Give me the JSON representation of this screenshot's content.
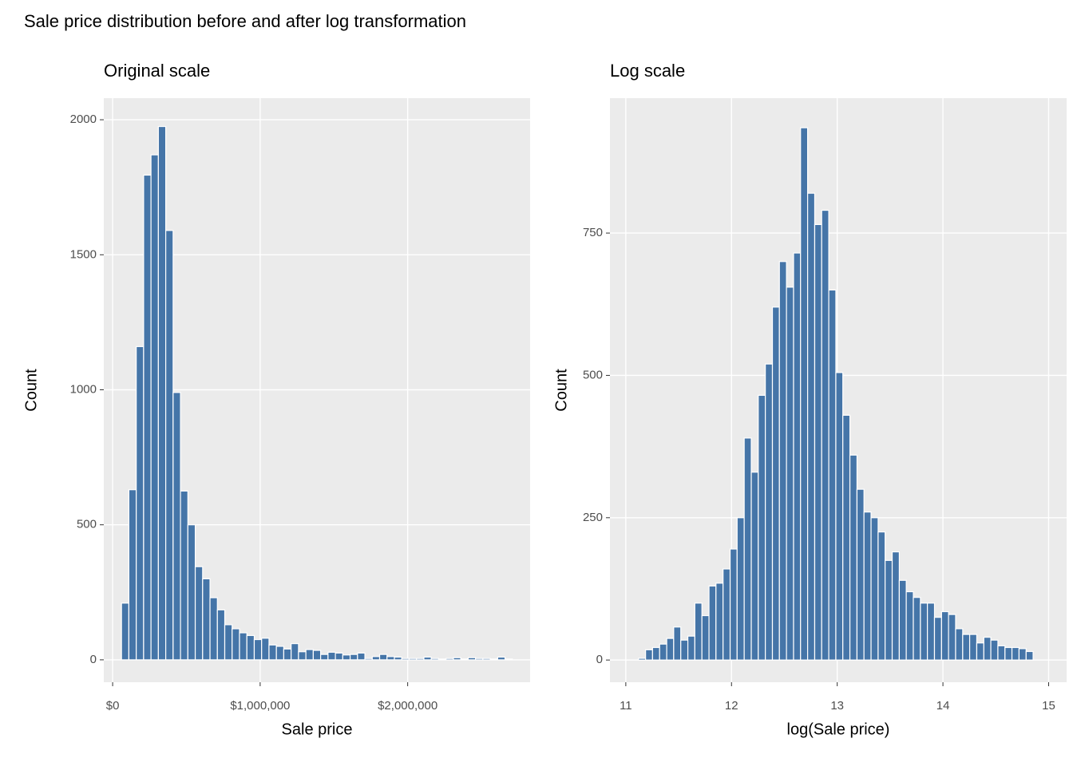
{
  "title": "Sale price distribution before and after log transformation",
  "chart_data": [
    {
      "type": "histogram",
      "title": "Original scale",
      "xlabel": "Sale price",
      "ylabel": "Count",
      "color": "#4575a8",
      "edgecolor": "#ffffff",
      "grid": true,
      "bins": [
        60000,
        110000,
        160000,
        210000,
        260000,
        310000,
        360000,
        410000,
        460000,
        510000,
        560000,
        610000,
        660000,
        710000,
        760000,
        810000,
        860000,
        910000,
        960000,
        1010000,
        1060000,
        1110000,
        1160000,
        1210000,
        1260000,
        1310000,
        1360000,
        1410000,
        1460000,
        1510000,
        1560000,
        1610000,
        1660000,
        1710000,
        1760000,
        1810000,
        1860000,
        1910000,
        1960000,
        2010000,
        2060000,
        2110000,
        2160000,
        2210000,
        2260000,
        2310000,
        2360000,
        2410000,
        2460000,
        2510000,
        2560000,
        2610000,
        2660000,
        2710000
      ],
      "values": [
        210,
        630,
        1160,
        1795,
        1870,
        1975,
        1590,
        990,
        625,
        500,
        345,
        300,
        230,
        185,
        130,
        115,
        100,
        90,
        75,
        80,
        55,
        50,
        40,
        60,
        30,
        38,
        35,
        20,
        28,
        25,
        18,
        20,
        25,
        5,
        12,
        20,
        12,
        10,
        5,
        5,
        5,
        10,
        5,
        3,
        5,
        8,
        3,
        8,
        5,
        5,
        3,
        10,
        3
      ],
      "xlim": [
        -60000,
        2830000
      ],
      "xticks": [
        {
          "value": 0,
          "label": "$0"
        },
        {
          "value": 1000000,
          "label": "$1,000,000"
        },
        {
          "value": 2000000,
          "label": "$2,000,000"
        }
      ],
      "ylim": [
        -83,
        2080
      ],
      "yticks": [
        0,
        500,
        1000,
        1500,
        2000
      ]
    },
    {
      "type": "histogram",
      "title": "Log scale",
      "xlabel": "log(Sale price)",
      "ylabel": "Count",
      "color": "#4575a8",
      "edgecolor": "#ffffff",
      "grid": true,
      "bins": [
        11.12,
        11.187,
        11.253,
        11.32,
        11.387,
        11.453,
        11.52,
        11.587,
        11.653,
        11.72,
        11.787,
        11.853,
        11.92,
        11.987,
        12.053,
        12.12,
        12.187,
        12.253,
        12.32,
        12.387,
        12.453,
        12.52,
        12.587,
        12.653,
        12.72,
        12.787,
        12.853,
        12.92,
        12.987,
        13.053,
        13.12,
        13.187,
        13.253,
        13.32,
        13.387,
        13.453,
        13.52,
        13.587,
        13.653,
        13.72,
        13.787,
        13.853,
        13.92,
        13.987,
        14.053,
        14.12,
        14.187,
        14.253,
        14.32,
        14.387,
        14.453,
        14.52,
        14.587,
        14.653,
        14.72,
        14.787,
        14.853
      ],
      "values": [
        3,
        18,
        22,
        28,
        38,
        58,
        35,
        42,
        100,
        78,
        130,
        135,
        160,
        195,
        250,
        390,
        330,
        465,
        520,
        620,
        700,
        655,
        715,
        935,
        820,
        765,
        790,
        650,
        505,
        430,
        360,
        300,
        260,
        250,
        225,
        175,
        190,
        140,
        120,
        110,
        100,
        100,
        75,
        85,
        80,
        55,
        45,
        45,
        30,
        40,
        35,
        25,
        22,
        22,
        20,
        15
      ],
      "xlim": [
        10.85,
        15.17
      ],
      "xticks": [
        11,
        12,
        13,
        14,
        15
      ],
      "ylim": [
        -39,
        987
      ],
      "yticks": [
        0,
        250,
        500,
        750
      ]
    }
  ]
}
